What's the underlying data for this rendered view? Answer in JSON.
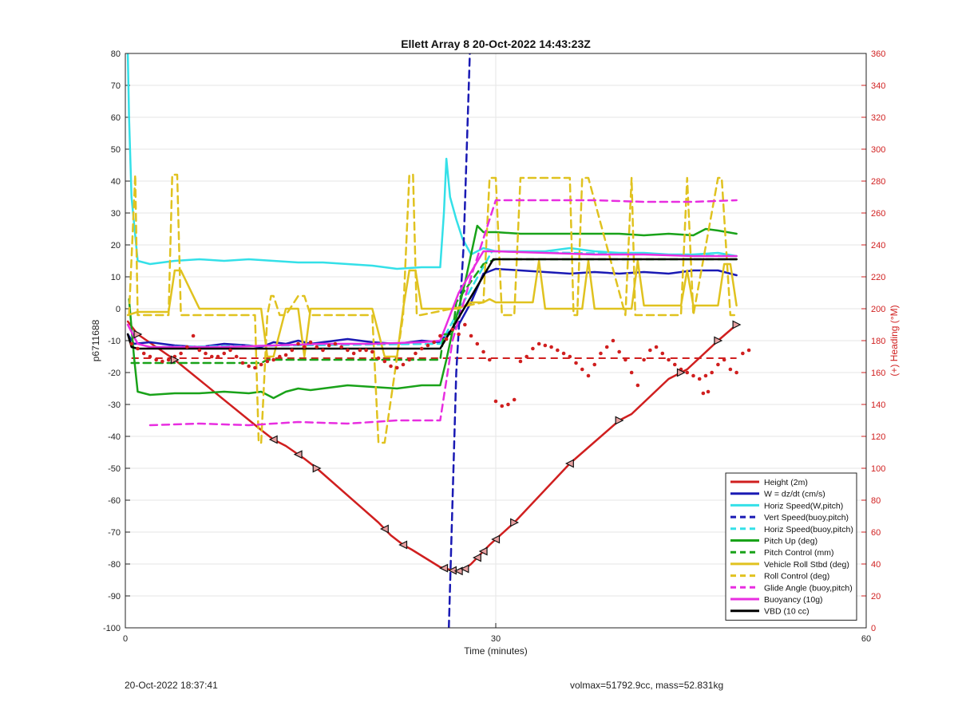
{
  "chart_data": {
    "type": "line",
    "title": "Ellett Array 8 20-Oct-2022 14:43:23Z",
    "xlabel": "Time (minutes)",
    "ylabel": "p6711688",
    "y2label": "(+) Heading (°M)",
    "xlim": [
      0,
      60
    ],
    "ylim": [
      -100,
      80
    ],
    "y2lim": [
      0,
      360
    ],
    "xticks": [
      0,
      30,
      60
    ],
    "yticks": [
      -100,
      -90,
      -80,
      -70,
      -60,
      -50,
      -40,
      -30,
      -20,
      -10,
      0,
      10,
      20,
      30,
      40,
      50,
      60,
      70,
      80
    ],
    "y2ticks": [
      0,
      20,
      40,
      60,
      80,
      100,
      120,
      140,
      160,
      180,
      200,
      220,
      240,
      260,
      280,
      300,
      320,
      340,
      360
    ],
    "grid": true,
    "legend_position": "bottom-right",
    "colors": {
      "height": "#d01f1f",
      "w": "#1a1ab4",
      "horiz": "#34e0e8",
      "pitch": "#19a219",
      "roll": "#e0c21f",
      "glide": "#e82ee0",
      "buoy": "#e82ee0",
      "vbd": "#000000",
      "heading": "#d01f1f",
      "y2axis": "#d01f1f"
    },
    "series": [
      {
        "name": "Height (2m)",
        "style": "solid",
        "color": "#d01f1f",
        "x": [
          0.2,
          1,
          4,
          11,
          12,
          13,
          14.5,
          15.5,
          20.5,
          21.5,
          22.5,
          23.2,
          25.5,
          26.5,
          27,
          27.5,
          28,
          28.5,
          29.5,
          31.5,
          36,
          40,
          41,
          44,
          45.5,
          48,
          49.5
        ],
        "y": [
          -4,
          -8,
          -16,
          -38,
          -41,
          -43,
          -47,
          -50,
          -67,
          -71,
          -74,
          -75.5,
          -81,
          -82,
          -82.2,
          -81.5,
          -80,
          -78,
          -74,
          -67,
          -48.5,
          -35,
          -33,
          -22,
          -19,
          -10,
          -5
        ]
      },
      {
        "name": "W = dz/dt (cm/s)",
        "style": "solid",
        "color": "#1a1ab4",
        "x": [
          0.2,
          0.7,
          2,
          4,
          6,
          8,
          10,
          11,
          12,
          13,
          14,
          15,
          16,
          18,
          20,
          22,
          24,
          25.5,
          26,
          27,
          28,
          29,
          30,
          32,
          34,
          36,
          38,
          40,
          42,
          44,
          46,
          48,
          49.5
        ],
        "y": [
          -8,
          -11,
          -10.5,
          -11.5,
          -12,
          -11,
          -11.5,
          -12,
          -10.5,
          -11,
          -10,
          -11,
          -10.5,
          -9.5,
          -10.5,
          -11,
          -10,
          -10.5,
          -8,
          -5,
          2,
          11,
          12.5,
          12,
          11.5,
          11,
          11.5,
          11,
          11.5,
          11,
          12,
          12,
          10.5
        ]
      },
      {
        "name": "Horiz Speed(W,pitch)",
        "style": "solid",
        "color": "#34e0e8",
        "x": [
          0.2,
          0.3,
          0.5,
          1,
          2,
          4,
          6,
          8,
          10,
          12,
          14,
          16,
          18,
          20,
          22,
          24,
          25.5,
          25.8,
          26,
          26.3,
          26.8,
          27.3,
          28,
          29,
          30,
          32,
          34,
          36,
          38,
          40,
          42,
          44,
          46,
          48,
          49.5
        ],
        "y": [
          80,
          60,
          35,
          15,
          14,
          15,
          15.5,
          15,
          15.5,
          15,
          14.5,
          14.5,
          14,
          13.5,
          12.5,
          13,
          13,
          30,
          47,
          35,
          28,
          22,
          17,
          19,
          18,
          18,
          18,
          19,
          18,
          17.5,
          17.5,
          17,
          17,
          17.5,
          16.5
        ]
      },
      {
        "name": "Vert Speed(buoy,pitch)",
        "style": "dashed",
        "color": "#1a1ab4",
        "x": [
          26.2,
          26.8,
          27.4,
          27.9
        ],
        "y": [
          -100,
          -20,
          20,
          80
        ]
      },
      {
        "name": "Horiz Speed(buoy,pitch)",
        "style": "dashed",
        "color": "#34e0e8",
        "x": [
          2,
          25.5,
          29.7,
          49.5
        ],
        "y": [
          -12,
          -11,
          18,
          16.5
        ]
      },
      {
        "name": "Pitch Up (deg)",
        "style": "solid",
        "color": "#19a219",
        "x": [
          0.3,
          0.7,
          1,
          2,
          4,
          6,
          8,
          10,
          11,
          12,
          13,
          14,
          15,
          16,
          18,
          20,
          22,
          24,
          25,
          25.5,
          26,
          26.5,
          27,
          27.5,
          28.5,
          29,
          30,
          32,
          34,
          36,
          38,
          40,
          42,
          44,
          46,
          47,
          48,
          49.5
        ],
        "y": [
          3,
          -15,
          -26,
          -27,
          -26.5,
          -26.5,
          -26,
          -26.5,
          -26,
          -28,
          -26,
          -25,
          -25.5,
          -25,
          -24,
          -24.5,
          -25,
          -24,
          -24,
          -24,
          -16,
          -7,
          0,
          8,
          26,
          24,
          24,
          23.5,
          23.5,
          23.5,
          23.5,
          23.5,
          23,
          23.5,
          23,
          25,
          24.5,
          23.5
        ]
      },
      {
        "name": "Pitch Control (mm)",
        "style": "dashed",
        "color": "#19a219",
        "x": [
          0.5,
          11,
          11.5,
          25.5,
          25.8,
          26.5,
          26.8,
          29,
          30,
          49.5
        ],
        "y": [
          -17,
          -17,
          -16,
          -16,
          -8,
          -8,
          2,
          14,
          15.5,
          15.5
        ]
      },
      {
        "name": "Vehicle Roll Stbd (deg)",
        "style": "solid",
        "color": "#e0c21f",
        "x": [
          0.2,
          1,
          2,
          3.5,
          4,
          4.5,
          6,
          8,
          10,
          11,
          11.5,
          12,
          13,
          14,
          14.5,
          15,
          16,
          18,
          20,
          21,
          22,
          22.5,
          23,
          23.5,
          24,
          26,
          27,
          28,
          29,
          29.5,
          30,
          32,
          33,
          33.5,
          34,
          36,
          37,
          37.5,
          38,
          40,
          41,
          41.5,
          42,
          44,
          45,
          45.5,
          46,
          48,
          48.5,
          49,
          49.5
        ],
        "y": [
          -2,
          -1,
          -1,
          -1,
          12,
          12,
          0,
          0,
          0,
          0,
          -15,
          -15,
          0,
          0,
          -15,
          0,
          0,
          0,
          0,
          -15,
          -15,
          0,
          12,
          12,
          0,
          0,
          0,
          2,
          2,
          3,
          2,
          2,
          2,
          15,
          0,
          0,
          0,
          15,
          0,
          0,
          0,
          15,
          1,
          1,
          1,
          12,
          1,
          1,
          14,
          14,
          1
        ]
      },
      {
        "name": "Roll Control (deg)",
        "style": "dashed",
        "color": "#e0c21f",
        "x": [
          0.3,
          0.8,
          1,
          2,
          3.5,
          3.8,
          4.2,
          4.5,
          10.5,
          10.8,
          11,
          11.5,
          11.8,
          12,
          12.5,
          13,
          14,
          14.5,
          15,
          20,
          20.5,
          21,
          22.5,
          23,
          23.3,
          23.6,
          23.9,
          29,
          29.5,
          30,
          30.5,
          31.5,
          32,
          36,
          36.3,
          36.6,
          37,
          37.5,
          40.5,
          41,
          41.3,
          45,
          45.5,
          46,
          48,
          48.3,
          49,
          49.5
        ],
        "y": [
          -2,
          42,
          -2,
          -2,
          -2,
          42,
          42,
          -2,
          -2,
          -42,
          -42,
          -2,
          4,
          4,
          -2,
          -2,
          4,
          4,
          -2,
          -2,
          -42,
          -42,
          -2,
          42,
          42,
          -2,
          -2,
          2,
          41,
          41,
          -2,
          -2,
          41,
          41,
          -2,
          -2,
          41,
          41,
          -2,
          41,
          -2,
          -2,
          41,
          -2,
          41,
          41,
          -2,
          -2
        ]
      },
      {
        "name": "Glide Angle (buoy,pitch)",
        "style": "dashed",
        "color": "#e82ee0",
        "x": [
          2,
          6,
          10,
          14,
          18,
          22,
          25.5,
          26.5,
          28,
          29.5,
          30,
          34,
          38,
          42,
          46,
          49.5
        ],
        "y": [
          -36.5,
          -36,
          -36.5,
          -35.5,
          -36,
          -35,
          -35,
          -10,
          10,
          28,
          34,
          34,
          34,
          33.5,
          33.5,
          34
        ]
      },
      {
        "name": "Buoyancy (10g)",
        "style": "solid",
        "color": "#e82ee0",
        "x": [
          0.2,
          1,
          2,
          4,
          8,
          12,
          16,
          20,
          24,
          25.5,
          27,
          29,
          30,
          34,
          38,
          42,
          46,
          49.5
        ],
        "y": [
          -5,
          -11,
          -12,
          -12,
          -12,
          -11.5,
          -11,
          -11,
          -10.5,
          -10,
          5,
          18,
          18,
          17.5,
          17,
          17,
          16.5,
          16.5
        ]
      },
      {
        "name": "VBD (10 cc)",
        "style": "solid",
        "color": "#000000",
        "x": [
          0.2,
          0.5,
          1,
          25.5,
          29.8,
          49.5
        ],
        "y": [
          -8,
          -12,
          -12.5,
          -12.5,
          15.5,
          15.5
        ]
      }
    ],
    "heading_dashed": {
      "x": [
        0.5,
        49.5
      ],
      "y": [
        169,
        169
      ],
      "color": "#d01f1f"
    },
    "heading_points": [
      [
        0.5,
        178
      ],
      [
        1,
        175
      ],
      [
        1.5,
        172
      ],
      [
        2,
        170
      ],
      [
        2.5,
        168
      ],
      [
        3,
        167
      ],
      [
        3.5,
        168
      ],
      [
        4,
        170
      ],
      [
        4.5,
        172
      ],
      [
        5,
        176
      ],
      [
        5.5,
        183
      ],
      [
        6,
        174
      ],
      [
        6.5,
        172
      ],
      [
        7,
        170
      ],
      [
        7.5,
        170
      ],
      [
        8,
        172
      ],
      [
        8.5,
        174
      ],
      [
        9,
        170
      ],
      [
        9.5,
        166
      ],
      [
        10,
        164
      ],
      [
        10.5,
        163
      ],
      [
        11,
        165
      ],
      [
        11.5,
        167
      ],
      [
        12,
        168
      ],
      [
        12.5,
        170
      ],
      [
        13,
        171
      ],
      [
        13.5,
        174
      ],
      [
        14,
        178
      ],
      [
        14.5,
        176
      ],
      [
        15,
        179
      ],
      [
        15.5,
        176
      ],
      [
        16,
        174
      ],
      [
        16.5,
        177
      ],
      [
        17,
        178
      ],
      [
        17.5,
        176
      ],
      [
        18,
        174
      ],
      [
        18.5,
        172
      ],
      [
        19,
        174
      ],
      [
        19.5,
        174
      ],
      [
        20,
        173
      ],
      [
        20.5,
        169
      ],
      [
        21,
        167
      ],
      [
        21.5,
        164
      ],
      [
        22,
        163
      ],
      [
        22.5,
        165
      ],
      [
        23,
        168
      ],
      [
        23.5,
        172
      ],
      [
        24,
        175
      ],
      [
        24.5,
        177
      ],
      [
        25,
        179
      ],
      [
        25.5,
        183
      ],
      [
        26,
        181
      ],
      [
        26.5,
        187
      ],
      [
        27,
        184
      ],
      [
        27.5,
        190
      ],
      [
        28,
        183
      ],
      [
        28.5,
        178
      ],
      [
        29,
        173
      ],
      [
        29.5,
        168
      ],
      [
        30,
        142
      ],
      [
        30.5,
        139
      ],
      [
        31,
        140
      ],
      [
        31.5,
        143
      ],
      [
        32,
        167
      ],
      [
        32.5,
        170
      ],
      [
        33,
        175
      ],
      [
        33.5,
        178
      ],
      [
        34,
        177
      ],
      [
        34.5,
        176
      ],
      [
        35,
        174
      ],
      [
        35.5,
        172
      ],
      [
        36,
        170
      ],
      [
        36.5,
        166
      ],
      [
        37,
        162
      ],
      [
        37.5,
        158
      ],
      [
        38,
        165
      ],
      [
        38.5,
        172
      ],
      [
        39,
        176
      ],
      [
        39.5,
        180
      ],
      [
        40,
        173
      ],
      [
        40.5,
        168
      ],
      [
        41,
        160
      ],
      [
        41.5,
        152
      ],
      [
        42,
        168
      ],
      [
        42.5,
        174
      ],
      [
        43,
        176
      ],
      [
        43.5,
        172
      ],
      [
        44,
        168
      ],
      [
        44.5,
        165
      ],
      [
        45,
        162
      ],
      [
        45.5,
        160
      ],
      [
        46,
        158
      ],
      [
        46.5,
        156
      ],
      [
        47,
        158
      ],
      [
        47.5,
        160
      ],
      [
        48,
        165
      ],
      [
        48.5,
        168
      ],
      [
        49,
        162
      ],
      [
        49.5,
        160
      ],
      [
        50,
        172
      ],
      [
        50.5,
        174
      ],
      [
        46.8,
        147
      ],
      [
        47.2,
        148
      ]
    ],
    "markers": {
      "triangle_left_x": [
        12,
        14,
        21,
        22.5,
        25.8,
        26.5,
        27,
        27.5,
        28.5,
        29,
        30,
        36
      ],
      "triangle_right_x": [
        1,
        4,
        15.5,
        31.5,
        40,
        45,
        48,
        49.5
      ]
    }
  },
  "footer": {
    "left": "20-Oct-2022 18:37:41",
    "right": "volmax=51792.9cc, mass=52.831kg"
  }
}
